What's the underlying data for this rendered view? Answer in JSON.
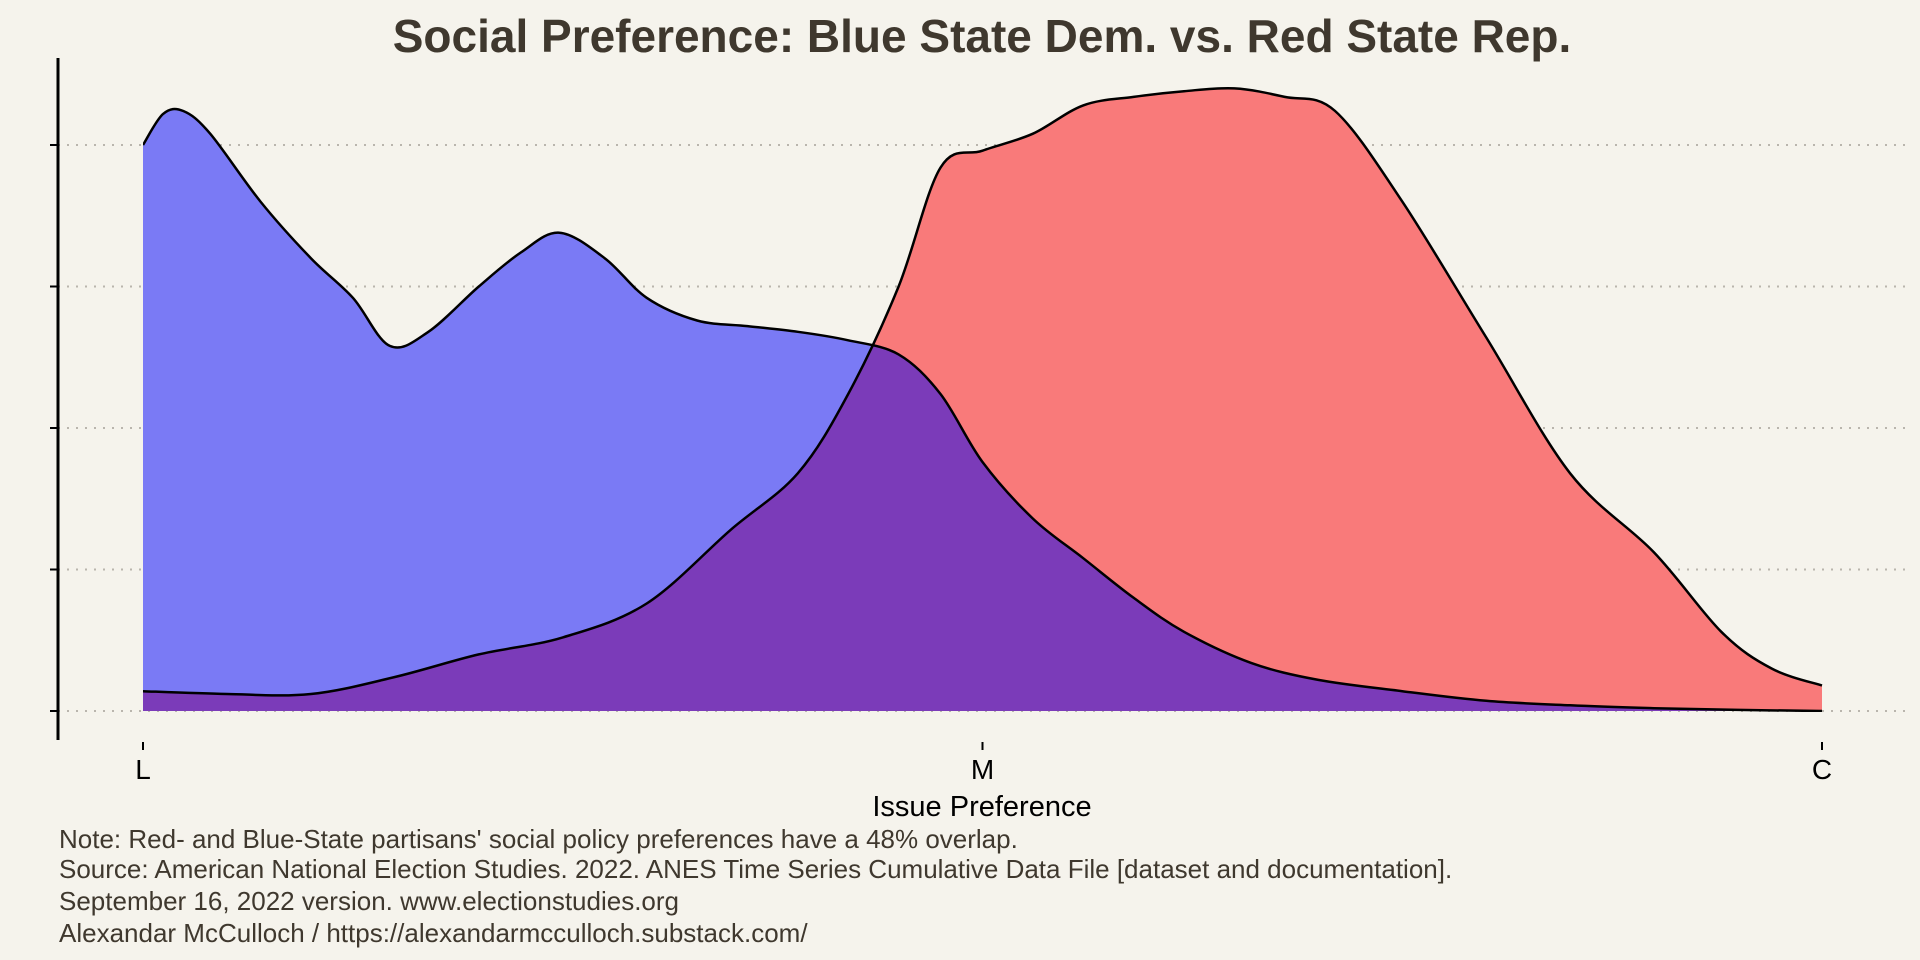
{
  "chart_data": {
    "type": "area",
    "title": "Social Preference: Blue State Dem. vs. Red State Rep.",
    "xlabel": "Issue Preference",
    "ylabel": "",
    "x_tick_labels": [
      "L",
      "M",
      "C"
    ],
    "xlim": [
      0,
      1
    ],
    "ylim": [
      0,
      1.09
    ],
    "y_gridlines": [
      0,
      0.25,
      0.5,
      0.75,
      1.0
    ],
    "y_tick_labels_shown": false,
    "legend": "none",
    "overlap_color": "#7b3bb9",
    "series": [
      {
        "color": "#7a7af5",
        "x": [
          0,
          0.012,
          0.024,
          0.04,
          0.07,
          0.1,
          0.125,
          0.147,
          0.17,
          0.2,
          0.225,
          0.248,
          0.275,
          0.3,
          0.33,
          0.36,
          0.39,
          0.42,
          0.45,
          0.475,
          0.5,
          0.53,
          0.56,
          0.59,
          0.62,
          0.66,
          0.7,
          0.75,
          0.8,
          0.85,
          0.9,
          0.95,
          1.0
        ],
        "y": [
          1.0,
          1.055,
          1.06,
          1.02,
          0.9,
          0.8,
          0.73,
          0.645,
          0.67,
          0.75,
          0.81,
          0.845,
          0.8,
          0.73,
          0.69,
          0.68,
          0.67,
          0.655,
          0.63,
          0.56,
          0.44,
          0.34,
          0.27,
          0.2,
          0.14,
          0.085,
          0.055,
          0.035,
          0.018,
          0.01,
          0.005,
          0.002,
          0.0
        ]
      },
      {
        "color": "#f97a7a",
        "x": [
          0,
          0.05,
          0.1,
          0.15,
          0.2,
          0.25,
          0.3,
          0.35,
          0.39,
          0.42,
          0.45,
          0.475,
          0.5,
          0.53,
          0.56,
          0.59,
          0.62,
          0.65,
          0.68,
          0.71,
          0.75,
          0.8,
          0.85,
          0.9,
          0.94,
          0.97,
          1.0
        ],
        "y": [
          0.035,
          0.03,
          0.03,
          0.06,
          0.1,
          0.13,
          0.19,
          0.32,
          0.42,
          0.56,
          0.75,
          0.96,
          0.99,
          1.02,
          1.07,
          1.085,
          1.095,
          1.1,
          1.085,
          1.06,
          0.9,
          0.66,
          0.42,
          0.28,
          0.14,
          0.075,
          0.045
        ]
      }
    ],
    "annotations": [
      "Note: Red- and Blue-State partisans' social policy preferences have a 48% overlap.",
      "Source: American National Election Studies. 2022. ANES Time Series Cumulative Data File [dataset and documentation].",
      "September 16, 2022 version. www.electionstudies.org",
      "Alexandar McCulloch / https://alexandarmcculloch.substack.com/"
    ]
  }
}
